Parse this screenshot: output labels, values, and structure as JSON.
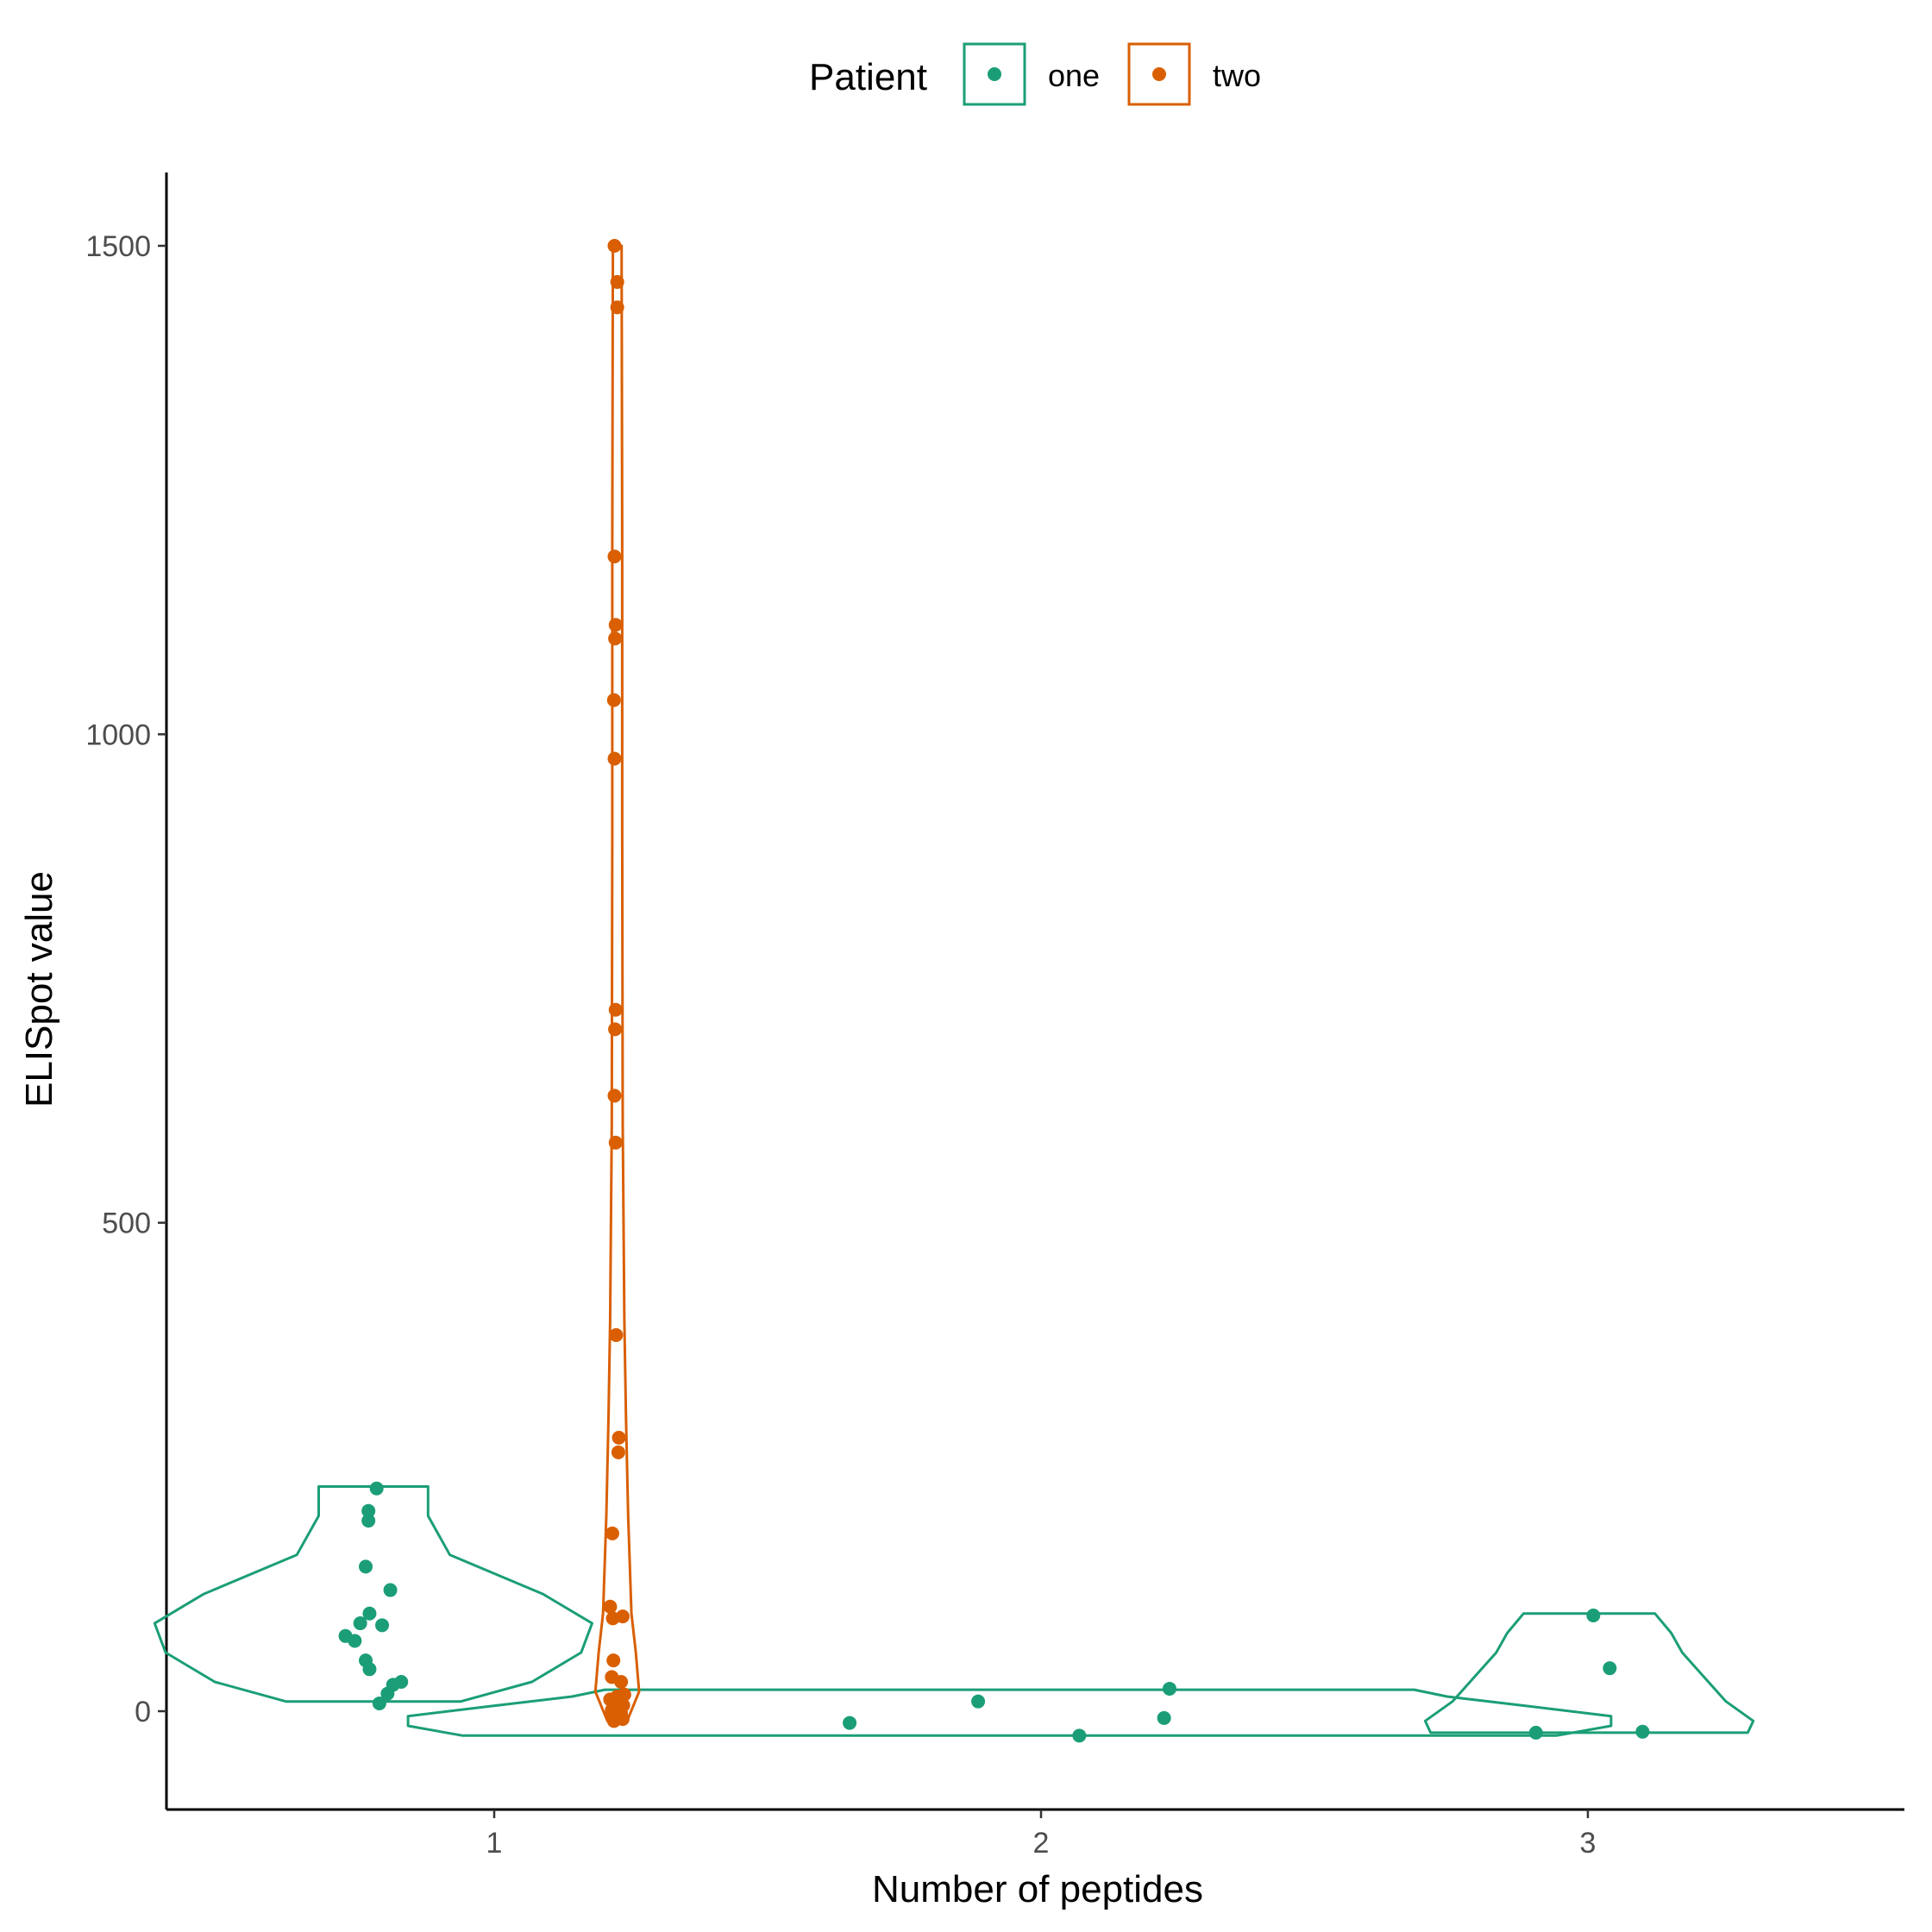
{
  "chart_data": {
    "type": "violin",
    "xlabel": "Number of peptides",
    "ylabel": "ELISpot value",
    "categories": [
      "1",
      "2",
      "3"
    ],
    "ylim": [
      -100,
      1590
    ],
    "yticks": [
      0,
      500,
      1000,
      1500
    ],
    "grid": false,
    "legend": {
      "title": "Patient",
      "position": "top"
    },
    "series": [
      {
        "name": "one",
        "color": "#1b9e77",
        "groups": [
          {
            "category": "1",
            "violin": [
              [
                10,
                0.16
              ],
              [
                30,
                0.29
              ],
              [
                60,
                0.38
              ],
              [
                90,
                0.4
              ],
              [
                120,
                0.31
              ],
              [
                160,
                0.14
              ],
              [
                200,
                0.1
              ],
              [
                230,
                0.1
              ]
            ],
            "points": [
              [
                0.728,
                77
              ],
              [
                0.745,
                72
              ],
              [
                0.755,
                90
              ],
              [
                0.765,
                52
              ],
              [
                0.765,
                148
              ],
              [
                0.77,
                205
              ],
              [
                0.77,
                195
              ],
              [
                0.772,
                43
              ],
              [
                0.772,
                100
              ],
              [
                0.785,
                228
              ],
              [
                0.79,
                8
              ],
              [
                0.795,
                88
              ],
              [
                0.805,
                18
              ],
              [
                0.81,
                124
              ],
              [
                0.815,
                27
              ],
              [
                0.83,
                30
              ]
            ]
          },
          {
            "category": "2",
            "violin": [
              [
                -25,
                1.0
              ],
              [
                -15,
                1.1
              ],
              [
                -5,
                1.1
              ],
              [
                5,
                0.95
              ],
              [
                15,
                0.8
              ],
              [
                22,
                0.74
              ]
            ],
            "points": [
              [
                1.65,
                -12
              ],
              [
                1.885,
                10
              ],
              [
                2.07,
                -25
              ],
              [
                2.225,
                -7
              ],
              [
                2.235,
                23
              ]
            ]
          },
          {
            "category": "3",
            "violin": [
              [
                -22,
                0.29
              ],
              [
                -10,
                0.3
              ],
              [
                10,
                0.25
              ],
              [
                35,
                0.21
              ],
              [
                60,
                0.17
              ],
              [
                80,
                0.15
              ],
              [
                100,
                0.12
              ]
            ],
            "points": [
              [
                2.905,
                -22
              ],
              [
                3.01,
                98
              ],
              [
                3.04,
                44
              ],
              [
                3.1,
                -21
              ]
            ]
          }
        ]
      },
      {
        "name": "two",
        "color": "#d95f02",
        "groups": [
          {
            "category": "1",
            "violin": [
              [
                -10,
                0.018
              ],
              [
                20,
                0.04
              ],
              [
                60,
                0.034
              ],
              [
                100,
                0.026
              ],
              [
                200,
                0.02
              ],
              [
                300,
                0.016
              ],
              [
                400,
                0.013
              ],
              [
                600,
                0.01
              ],
              [
                900,
                0.009
              ],
              [
                1200,
                0.009
              ],
              [
                1500,
                0.008
              ]
            ],
            "points": [
              [
                1.22,
                1500
              ],
              [
                1.225,
                1463
              ],
              [
                1.225,
                1437
              ],
              [
                1.22,
                1182
              ],
              [
                1.222,
                1112
              ],
              [
                1.221,
                1098
              ],
              [
                1.219,
                1035
              ],
              [
                1.22,
                975
              ],
              [
                1.222,
                718
              ],
              [
                1.221,
                698
              ],
              [
                1.22,
                630
              ],
              [
                1.222,
                582
              ],
              [
                1.223,
                385
              ],
              [
                1.228,
                280
              ],
              [
                1.227,
                265
              ],
              [
                1.216,
                182
              ],
              [
                1.212,
                107
              ],
              [
                1.217,
                95
              ],
              [
                1.235,
                97
              ],
              [
                1.218,
                52
              ],
              [
                1.215,
                35
              ],
              [
                1.232,
                30
              ],
              [
                1.238,
                17
              ],
              [
                1.225,
                15
              ],
              [
                1.212,
                12
              ],
              [
                1.236,
                6
              ],
              [
                1.228,
                3
              ],
              [
                1.215,
                1
              ],
              [
                1.232,
                -2
              ],
              [
                1.222,
                -5
              ],
              [
                1.235,
                -8
              ],
              [
                1.219,
                -10
              ],
              [
                1.226,
                -6
              ],
              [
                1.214,
                -3
              ],
              [
                1.224,
                0
              ]
            ]
          }
        ]
      }
    ]
  }
}
